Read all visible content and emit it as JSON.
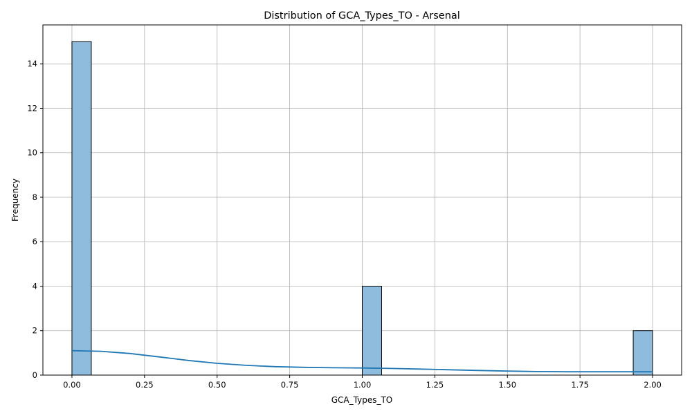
{
  "chart_data": {
    "type": "bar",
    "subtype": "histogram-with-kde",
    "title": "Distribution of GCA_Types_TO - Arsenal",
    "xlabel": "GCA_Types_TO",
    "ylabel": "Frequency",
    "xlim": [
      -0.1,
      2.1
    ],
    "ylim": [
      0,
      15.75
    ],
    "xticks": [
      0.0,
      0.25,
      0.5,
      0.75,
      1.0,
      1.25,
      1.5,
      1.75,
      2.0
    ],
    "xtick_labels": [
      "0.00",
      "0.25",
      "0.50",
      "0.75",
      "1.00",
      "1.25",
      "1.50",
      "1.75",
      "2.00"
    ],
    "yticks": [
      0,
      2,
      4,
      6,
      8,
      10,
      12,
      14
    ],
    "ytick_labels": [
      "0",
      "2",
      "4",
      "6",
      "8",
      "10",
      "12",
      "14"
    ],
    "grid": true,
    "bins": [
      {
        "x0": 0.0,
        "x1": 0.0667,
        "count": 15
      },
      {
        "x0": 1.0,
        "x1": 1.0667,
        "count": 4
      },
      {
        "x0": 1.9333,
        "x1": 2.0,
        "count": 2
      }
    ],
    "kde": {
      "x": [
        0.0,
        0.1,
        0.2,
        0.3,
        0.4,
        0.5,
        0.6,
        0.7,
        0.8,
        0.9,
        1.0,
        1.1,
        1.2,
        1.3,
        1.4,
        1.5,
        1.6,
        1.7,
        1.8,
        1.9,
        2.0
      ],
      "y": [
        1.1,
        1.07,
        0.97,
        0.82,
        0.66,
        0.53,
        0.44,
        0.38,
        0.35,
        0.33,
        0.32,
        0.3,
        0.27,
        0.24,
        0.21,
        0.18,
        0.16,
        0.15,
        0.15,
        0.15,
        0.15
      ]
    },
    "colors": {
      "bar_fill": "#8fbbdc",
      "bar_edge": "#000000",
      "kde_line": "#1f77b4",
      "grid": "#b0b0b0"
    }
  }
}
